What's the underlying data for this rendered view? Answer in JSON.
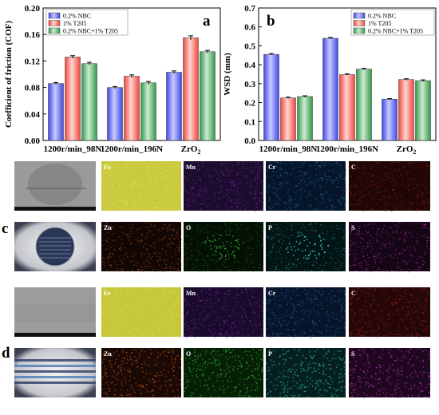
{
  "panels": {
    "a": "a",
    "b": "b",
    "c": "c",
    "d": "d"
  },
  "colors": {
    "nbc_top": "#c9cbff",
    "nbc_bottom": "#3f47e6",
    "t205_top": "#ffd6d2",
    "t205_bottom": "#f0463e",
    "mix_top": "#cfead2",
    "mix_bottom": "#2f9a48"
  },
  "chart_data": [
    {
      "type": "bar",
      "panel": "a",
      "categories": [
        "1200r/min_98N",
        "1200r/min_196N",
        "ZrO₂"
      ],
      "series": [
        {
          "name": "0.2% NBC",
          "values": [
            0.086,
            0.08,
            0.103
          ],
          "errors": [
            0.0015,
            0.0015,
            0.002
          ]
        },
        {
          "name": "1% T205",
          "values": [
            0.126,
            0.097,
            0.155
          ],
          "errors": [
            0.002,
            0.002,
            0.003
          ]
        },
        {
          "name": "0.2% NBC+1% T205",
          "values": [
            0.116,
            0.087,
            0.134
          ],
          "errors": [
            0.002,
            0.002,
            0.002
          ]
        }
      ],
      "ylabel": "Coefficient of friction (COF)",
      "ylim": [
        0.0,
        0.2
      ],
      "yticks": [
        "0.00",
        "0.04",
        "0.08",
        "0.12",
        "0.16",
        "0.20"
      ],
      "legend": "top-left"
    },
    {
      "type": "bar",
      "panel": "b",
      "categories": [
        "1200r/min_98N",
        "1200r/min_196N",
        "ZrO₂"
      ],
      "series": [
        {
          "name": "0.2% NBC",
          "values": [
            0.455,
            0.54,
            0.218
          ],
          "errors": [
            0.004,
            0.004,
            0.003
          ]
        },
        {
          "name": "1% T205",
          "values": [
            0.225,
            0.348,
            0.322
          ],
          "errors": [
            0.004,
            0.004,
            0.004
          ]
        },
        {
          "name": "0.2% NBC+1% T205",
          "values": [
            0.232,
            0.377,
            0.316
          ],
          "errors": [
            0.004,
            0.004,
            0.004
          ]
        }
      ],
      "ylabel": "WSD (mm)",
      "ylim": [
        0.0,
        0.7
      ],
      "yticks": [
        "0.0",
        "0.1",
        "0.2",
        "0.3",
        "0.4",
        "0.5",
        "0.6",
        "0.7"
      ],
      "legend": "top-right"
    }
  ],
  "maps": {
    "c": {
      "row1": [
        {
          "label": "",
          "base": "#9a9a9a",
          "dots": "#707070"
        },
        {
          "label": "Fe",
          "base": "#b5b52a",
          "dots": "#e4e45e"
        },
        {
          "label": "Mn",
          "base": "#1c0c2e",
          "dots": "#7a2fb0"
        },
        {
          "label": "Cr",
          "base": "#06162a",
          "dots": "#2f6fb0"
        },
        {
          "label": "C",
          "base": "#200606",
          "dots": "#9a1d1d"
        }
      ],
      "row2": [
        {
          "label": "",
          "base": "#d0d2d6",
          "dots": "#3a4a6a"
        },
        {
          "label": "Zn",
          "base": "#120705",
          "dots": "#b3501e"
        },
        {
          "label": "O",
          "base": "#041004",
          "dots": "#2fae2f"
        },
        {
          "label": "P",
          "base": "#031414",
          "dots": "#3fd3d3"
        },
        {
          "label": "S",
          "base": "#150615",
          "dots": "#b12fae"
        }
      ]
    },
    "d": {
      "row1": [
        {
          "label": "",
          "base": "#9c9c9c",
          "dots": "#8a8a8a"
        },
        {
          "label": "Fe",
          "base": "#b2b226",
          "dots": "#e0e055"
        },
        {
          "label": "Mn",
          "base": "#1a0b2c",
          "dots": "#7d32b5"
        },
        {
          "label": "Cr",
          "base": "#06152a",
          "dots": "#2e6dad"
        },
        {
          "label": "C",
          "base": "#250707",
          "dots": "#b82626"
        }
      ],
      "row2": [
        {
          "label": "",
          "base": "#c8cdd6",
          "dots": "#3a6aa0"
        },
        {
          "label": "Zn",
          "base": "#1a0904",
          "dots": "#e0651c"
        },
        {
          "label": "O",
          "base": "#062006",
          "dots": "#3fd23f"
        },
        {
          "label": "P",
          "base": "#062020",
          "dots": "#3fe0e0"
        },
        {
          "label": "S",
          "base": "#200720",
          "dots": "#d03fd0"
        }
      ]
    }
  }
}
